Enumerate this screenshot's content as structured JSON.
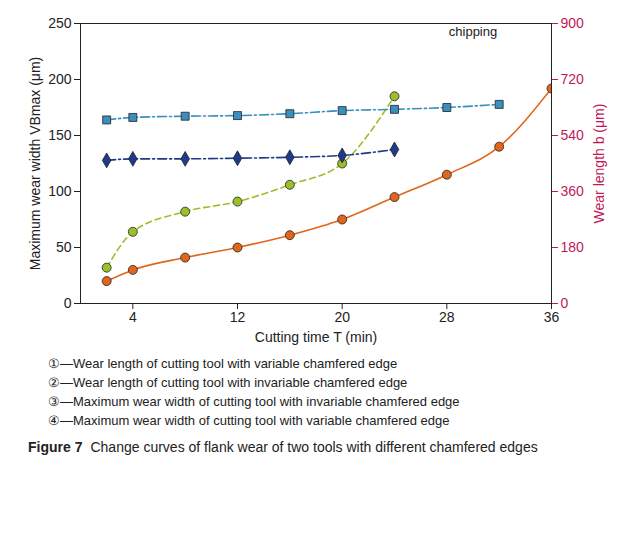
{
  "chart_data": {
    "type": "line",
    "title": "Figure 7",
    "subtitle": "Change curves of flank wear of two tools with different chamfered edges",
    "xlabel": "Cutting time T (min)",
    "ylabel": "Maximum wear width VBmax (μm)",
    "y2label": "Wear length b (μm)",
    "x": [
      2,
      4,
      8,
      12,
      16,
      20,
      24,
      28,
      32,
      36
    ],
    "xlim": [
      0,
      36
    ],
    "xticks": [
      4,
      12,
      20,
      28,
      36
    ],
    "ylim": [
      0,
      250
    ],
    "yticks": [
      0,
      50,
      100,
      150,
      200,
      250
    ],
    "y2lim": [
      0,
      900
    ],
    "y2ticks": [
      0,
      180,
      360,
      540,
      720,
      900
    ],
    "legend": "bottom",
    "grid": false,
    "series": [
      {
        "name": "①—Wear length of cutting tool with variable chamfered edge",
        "axis": "y2",
        "color": "#3b8fc0",
        "marker": "square",
        "line_style": "dashdot",
        "values": [
          590,
          598,
          602,
          604,
          610,
          620,
          624,
          630,
          640,
          null
        ]
      },
      {
        "name": "②—Wear length of cutting tool with invariable chamfered edge",
        "axis": "y2",
        "color": "#1f3a8a",
        "marker": "diamond",
        "line_style": "dashdot",
        "values": [
          460,
          465,
          465,
          467,
          470,
          476,
          495,
          null,
          null,
          null
        ]
      },
      {
        "name": "③—Maximum wear width of cutting tool with invariable chamfered edge",
        "axis": "y",
        "color": "#9bbf2a",
        "marker": "circle",
        "line_style": "dashed",
        "values": [
          32,
          64,
          82,
          91,
          106,
          125,
          185,
          null,
          null,
          null
        ]
      },
      {
        "name": "④—Maximum wear width of cutting tool with variable chamfered edge",
        "axis": "y",
        "color": "#e0661c",
        "marker": "circle",
        "line_style": "solid",
        "values": [
          20,
          30,
          41,
          50,
          61,
          75,
          95,
          115,
          140,
          192
        ]
      }
    ],
    "annotations": [
      {
        "text": "chipping",
        "x": 30,
        "y": 243
      }
    ]
  }
}
